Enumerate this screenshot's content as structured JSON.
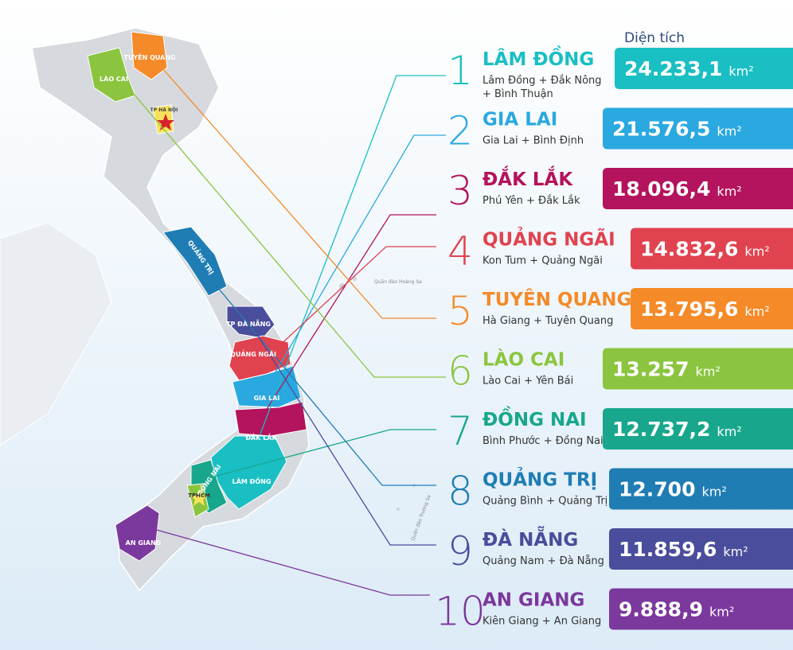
{
  "header": "Diện tích",
  "items": [
    {
      "rank": "1",
      "name": "LÂM ĐỒNG",
      "merged": "Lâm Đồng + Đắk Nông\n+ Bình Thuận",
      "area": "24.233,1",
      "unit": "km²",
      "color": "#19bfc3"
    },
    {
      "rank": "2",
      "name": "GIA LAI",
      "merged": "Gia Lai + Bình Định",
      "area": "21.576,5",
      "unit": "km²",
      "color": "#2aa8e0"
    },
    {
      "rank": "3",
      "name": "ĐẮK LẮK",
      "merged": "Phú Yên + Đắk Lắk",
      "area": "18.096,4",
      "unit": "km²",
      "color": "#b4135d"
    },
    {
      "rank": "4",
      "name": "QUẢNG NGÃI",
      "merged": "Kon Tum + Quảng Ngãi",
      "area": "14.832,6",
      "unit": "km²",
      "color": "#e1424f"
    },
    {
      "rank": "5",
      "name": "TUYÊN QUANG",
      "merged": "Hà Giang + Tuyên Quang",
      "area": "13.795,6",
      "unit": "km²",
      "color": "#f58a28"
    },
    {
      "rank": "6",
      "name": "LÀO CAI",
      "merged": "Lào Cai + Yên Bái",
      "area": "13.257",
      "unit": "km²",
      "color": "#8bc53f"
    },
    {
      "rank": "7",
      "name": "ĐỒNG NAI",
      "merged": "Bình Phước + Đồng Nai",
      "area": "12.737,2",
      "unit": "km²",
      "color": "#18a78d"
    },
    {
      "rank": "8",
      "name": "QUẢNG TRỊ",
      "merged": "Quảng Bình + Quảng Trị",
      "area": "12.700",
      "unit": "km²",
      "color": "#1f7db4"
    },
    {
      "rank": "9",
      "name": "ĐÀ NẴNG",
      "merged": "Quảng Nam + Đà Nẵng",
      "area": "11.859,6",
      "unit": "km²",
      "color": "#4a4d9b"
    },
    {
      "rank": "10",
      "name": "AN GIANG",
      "merged": "Kiên Giang + An Giang",
      "area": "9.888,9",
      "unit": "km²",
      "color": "#7b389d"
    }
  ],
  "map_labels": {
    "lao_cai": "LÀO CAI",
    "tuyen_quang": "TUYÊN QUANG",
    "ha_noi": "TP HÀ NỘI",
    "quang_tri": "QUẢNG TRỊ",
    "da_nang": "TP ĐÀ NẴNG",
    "quang_ngai": "QUẢNG NGÃI",
    "gia_lai": "GIA LAI",
    "dak_lak": "ĐẮK LẮK",
    "dong_nai": "ĐỒNG NAI",
    "lam_dong": "LÂM ĐỒNG",
    "tphcm": "TPHCM",
    "an_giang": "AN GIANG",
    "hoang_sa": "Quần đảo Hoàng Sa",
    "truong_sa": "Quần đảo Trường Sa"
  }
}
